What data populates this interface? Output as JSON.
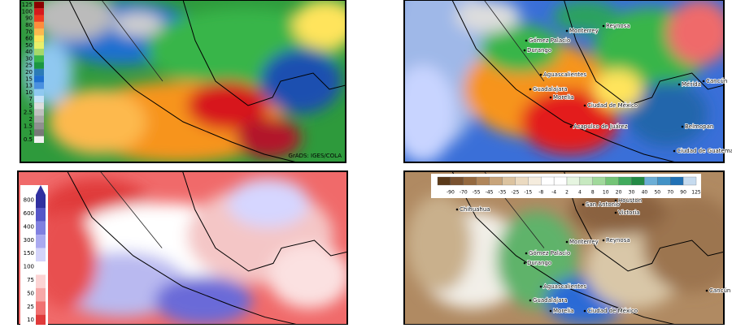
{
  "panels": [
    {
      "colorbar": [
        "125",
        "100",
        "90",
        "80",
        "70",
        "60",
        "50",
        "40",
        "30",
        "25",
        "20",
        "15",
        "13",
        "10",
        "7",
        "5",
        "2.5",
        "2",
        "1.5",
        "1",
        "0.5"
      ],
      "credit": "GrADS: IGES/COLA"
    },
    {
      "cities": [
        "Monterrey",
        "Reynosa",
        "Gómez Palacio",
        "Durango",
        "Aguascalientes",
        "Guadalajara",
        "Morelia",
        "Ciudad de México",
        "Acapulco de Juárez",
        "Mérida",
        "Cancún",
        "Belmopan",
        "Ciudad de Guatemala"
      ]
    },
    {
      "colorbar": [
        "800",
        "600",
        "400",
        "300",
        "150",
        "100",
        "75",
        "50",
        "25",
        "10"
      ]
    },
    {
      "colorbar": [
        "-90",
        "-70",
        "-55",
        "-45",
        "-35",
        "-25",
        "-15",
        "-8",
        "-4",
        "2",
        "4",
        "8",
        "10",
        "20",
        "30",
        "40",
        "50",
        "70",
        "90",
        "125"
      ],
      "cities": [
        "Chihuahua",
        "San Antonio",
        "Houston",
        "Victoria",
        "Monterrey",
        "Reynosa",
        "Gómez Palacio",
        "Durango",
        "Aguascalientes",
        "Guadalajara",
        "Morelia",
        "Ciudad de México",
        "Cancún"
      ]
    }
  ]
}
